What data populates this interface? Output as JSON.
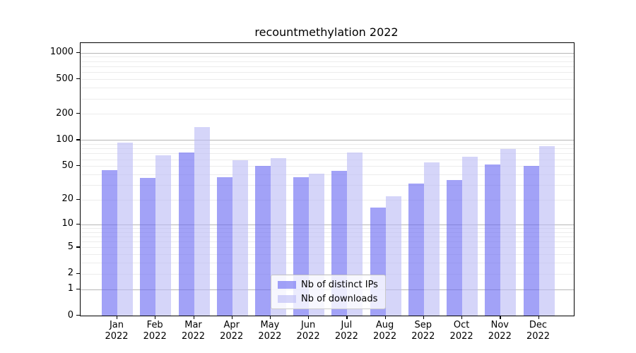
{
  "title": "recountmethylation 2022",
  "chart_data": {
    "type": "bar",
    "title": "recountmethylation 2022",
    "year": "2022",
    "categories": [
      "Jan",
      "Feb",
      "Mar",
      "Apr",
      "May",
      "Jun",
      "Jul",
      "Aug",
      "Sep",
      "Oct",
      "Nov",
      "Dec"
    ],
    "series": [
      {
        "name": "Nb of distinct IPs",
        "key": "distinct-ips",
        "color": "rgba(105,105,242,0.62)",
        "values": [
          45,
          36,
          72,
          37,
          50,
          37,
          44,
          16,
          31,
          34,
          52,
          50
        ]
      },
      {
        "name": "Nb of downloads",
        "key": "downloads",
        "color": "rgba(188,188,246,0.62)",
        "values": [
          94,
          66,
          140,
          58,
          62,
          41,
          72,
          22,
          55,
          64,
          79,
          85
        ]
      }
    ],
    "y_scale": "log10(1+x)",
    "y_ticks": [
      0,
      1,
      2,
      5,
      10,
      20,
      50,
      100,
      200,
      500,
      1000
    ],
    "ylim": [
      0,
      1290
    ],
    "xlabel": "",
    "ylabel": "",
    "grid": "horizontal; faint minor lines, darker lines at powers of 10",
    "legend_position": "lower center"
  },
  "colors": {
    "bar_distinct_ips": "rgba(105,105,242,0.62)",
    "bar_downloads": "rgba(188,188,246,0.62)",
    "grid_major": "#b6b6b6",
    "grid_minor": "#ececec",
    "axis": "#000000",
    "background": "#ffffff"
  }
}
